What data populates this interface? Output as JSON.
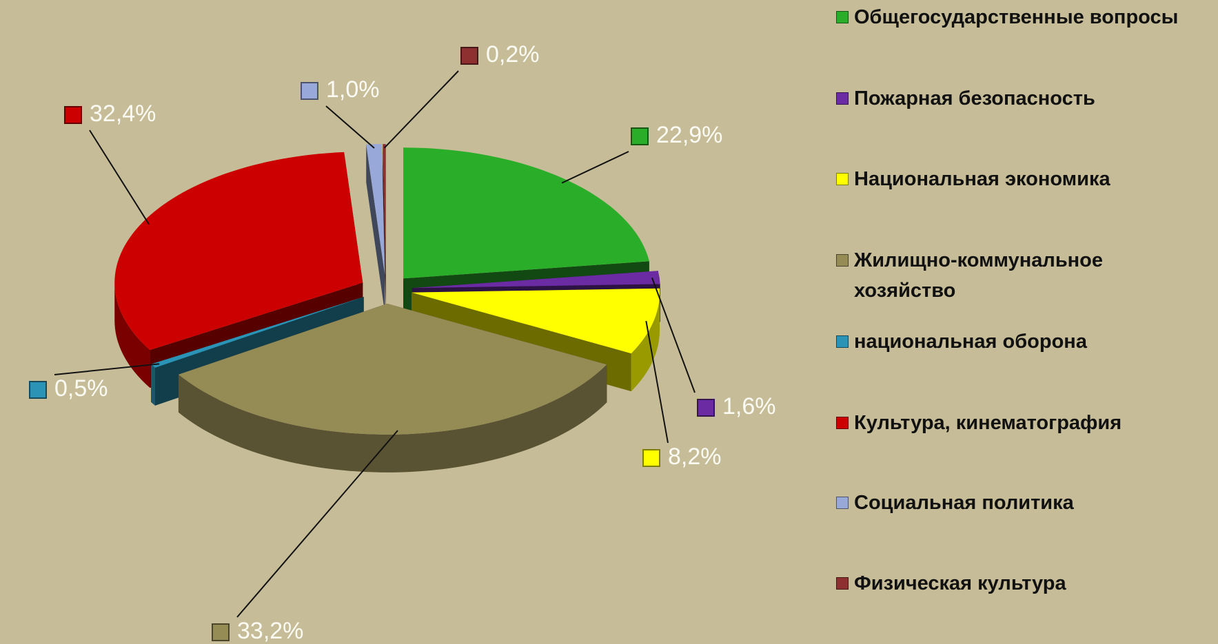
{
  "chart_data": {
    "type": "pie3d",
    "categories": [
      "Общегосударственные вопросы",
      "Пожарная безопасность",
      "Национальная экономика",
      "Жилищно-коммунальное хозяйство",
      "национальная оборона",
      "Культура, кинематография",
      "Социальная политика",
      "Физическая культура"
    ],
    "values": [
      22.9,
      1.6,
      8.2,
      33.2,
      0.5,
      32.4,
      1.0,
      0.2
    ],
    "value_labels": [
      "22,9%",
      "1,6%",
      "8,2%",
      "33,2%",
      "0,5%",
      "32,4%",
      "1,0%",
      "0,2%"
    ],
    "colors": [
      "#2aae2a",
      "#6b2ba3",
      "#ffff00",
      "#958b55",
      "#2b93b5",
      "#cc0000",
      "#98a8d8",
      "#8e3030"
    ],
    "legend": "right"
  }
}
